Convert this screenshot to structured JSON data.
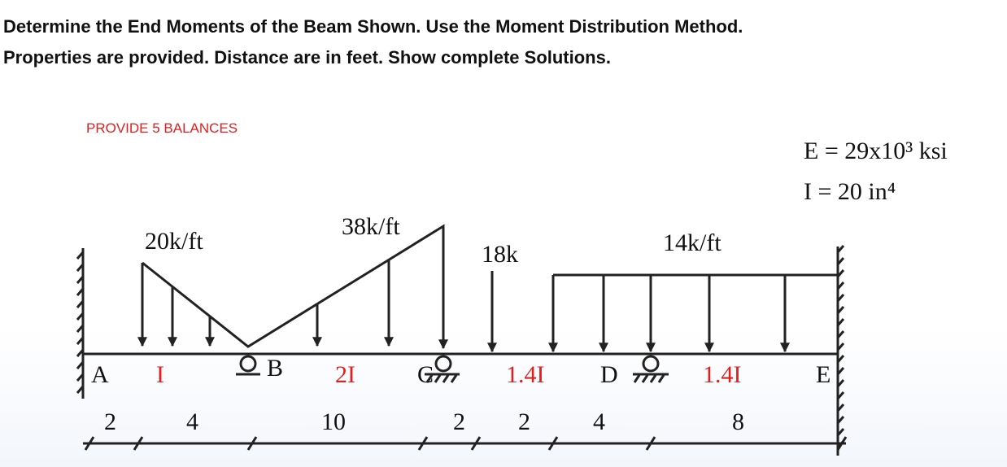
{
  "header": {
    "lines": [
      "Determine the End Moments of the Beam Shown. Use the Moment Distribution Method.",
      "Properties are provided. Distance are in feet. Show complete Solutions."
    ]
  },
  "note": "PROVIDE 5 BALANCES",
  "properties": [
    "E = 29x10³ ksi",
    "I = 20 in⁴"
  ],
  "loads": [
    "20k/ft",
    "38k/ft",
    "18k",
    "14k/ft"
  ],
  "nodes": [
    "A",
    "B",
    "C",
    "D",
    "E"
  ],
  "stiffness": [
    "I",
    "2I",
    "1.4I",
    "1.4I"
  ],
  "dimensions": [
    2,
    4,
    10,
    2,
    2,
    4,
    8
  ]
}
